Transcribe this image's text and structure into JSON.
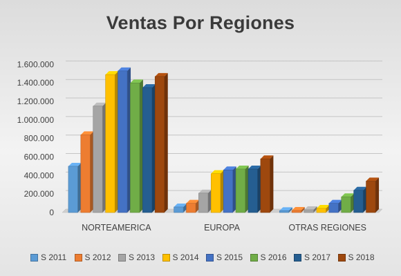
{
  "chart_data": {
    "type": "bar",
    "title": "Ventas Por Regiones",
    "categories": [
      "NORTEAMERICA",
      "EUROPA",
      "OTRAS REGIONES"
    ],
    "ylim": [
      0,
      1700000
    ],
    "yticks": [
      0,
      200000,
      400000,
      600000,
      800000,
      1000000,
      1200000,
      1400000,
      1600000
    ],
    "ytick_labels": [
      "0",
      "200.000",
      "400.000",
      "600.000",
      "800.000",
      "1.000.000",
      "1.200.000",
      "1.400.000",
      "1.600.000"
    ],
    "grid": true,
    "legend_position": "bottom",
    "series": [
      {
        "name": "S 2011",
        "color": "#5b9bd5",
        "values": [
          500000,
          60000,
          20000
        ]
      },
      {
        "name": "S 2012",
        "color": "#ed7d31",
        "values": [
          840000,
          100000,
          22000
        ]
      },
      {
        "name": "S 2013",
        "color": "#a5a5a5",
        "values": [
          1150000,
          210000,
          30000
        ]
      },
      {
        "name": "S 2014",
        "color": "#ffc000",
        "values": [
          1490000,
          420000,
          45000
        ]
      },
      {
        "name": "S 2015",
        "color": "#4472c4",
        "values": [
          1530000,
          460000,
          100000
        ]
      },
      {
        "name": "S 2016",
        "color": "#70ad47",
        "values": [
          1400000,
          470000,
          170000
        ]
      },
      {
        "name": "S 2017",
        "color": "#255e91",
        "values": [
          1350000,
          470000,
          240000
        ]
      },
      {
        "name": "S 2018",
        "color": "#9e480e",
        "values": [
          1470000,
          580000,
          340000
        ]
      }
    ]
  }
}
